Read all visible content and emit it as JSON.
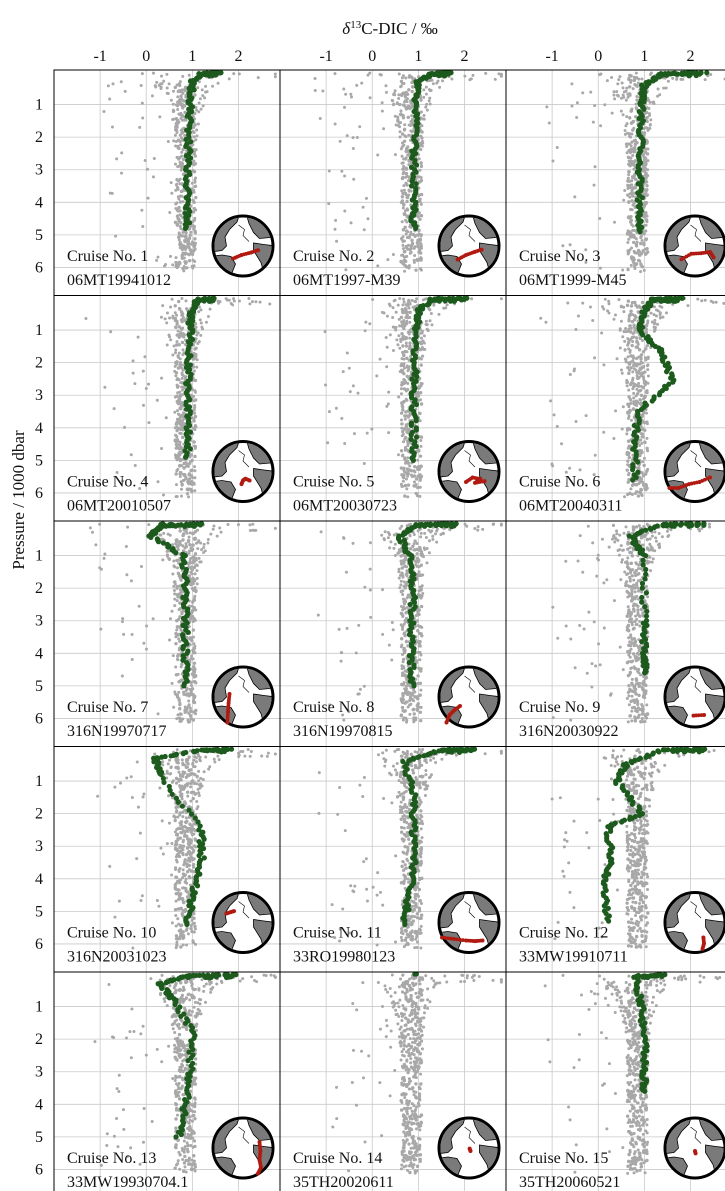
{
  "figure": {
    "x_axis_title": "δ13C-DIC / ‰",
    "x_axis_title_parts": {
      "delta": "δ",
      "superscript": "13",
      "rest": "C-DIC / ‰"
    },
    "y_axis_title": "Pressure / 1000 dbar"
  },
  "colors": {
    "background_points": "#a8a8a8",
    "cruise_points": "#1d5a1d",
    "track": "#b01a10",
    "land": "#7a7a7a",
    "ocean": "#ffffff",
    "grid": "#c9c9c9"
  },
  "icons": {
    "inset_map": "globe-atlantic-map-icon"
  },
  "chart_data": {
    "type": "scatter",
    "layout": "5x3 small multiples",
    "x_ticks": [
      -1,
      0,
      1,
      2
    ],
    "x_tick_labels": [
      "-1",
      "0",
      "1",
      "2"
    ],
    "xlim": [
      -2.0,
      2.9
    ],
    "y_ticks": [
      1,
      2,
      3,
      4,
      5,
      6
    ],
    "y_tick_labels": [
      "1",
      "2",
      "3",
      "4",
      "5",
      "6"
    ],
    "ylim": [
      0.0,
      6.8
    ],
    "y_inverted": true,
    "grid": true,
    "panels": [
      {
        "label": "Cruise No. 1",
        "expocode": "06MT19941012",
        "track": [
          [
            -0.33,
            0.42
          ],
          [
            -0.05,
            0.3
          ],
          [
            0.26,
            0.22
          ],
          [
            0.5,
            0.14
          ]
        ],
        "cruise_points": [
          [
            1.6,
            0.02
          ],
          [
            1.2,
            0.05
          ],
          [
            1.0,
            0.3
          ],
          [
            0.95,
            1.0
          ],
          [
            0.92,
            2.0
          ],
          [
            0.9,
            3.0
          ],
          [
            0.88,
            4.0
          ],
          [
            0.9,
            4.8
          ]
        ]
      },
      {
        "label": "Cruise No. 2",
        "expocode": "06MT1997-M39",
        "track": [
          [
            -0.38,
            0.45
          ],
          [
            -0.1,
            0.3
          ],
          [
            0.18,
            0.2
          ],
          [
            0.42,
            0.12
          ]
        ],
        "cruise_points": [
          [
            1.7,
            0.02
          ],
          [
            1.3,
            0.05
          ],
          [
            1.0,
            0.3
          ],
          [
            0.95,
            1.0
          ],
          [
            0.93,
            2.0
          ],
          [
            0.9,
            3.0
          ],
          [
            0.9,
            4.0
          ],
          [
            0.9,
            4.8
          ]
        ]
      },
      {
        "label": "Cruise No. 3",
        "expocode": "06MT1999-M45",
        "track": [
          [
            -0.45,
            0.44
          ],
          [
            -0.12,
            0.26
          ],
          [
            0.2,
            0.24
          ],
          [
            0.5,
            0.2
          ],
          [
            0.62,
            0.38
          ]
        ],
        "cruise_points": [
          [
            2.3,
            0.02
          ],
          [
            1.4,
            0.05
          ],
          [
            1.0,
            0.4
          ],
          [
            0.95,
            1.0
          ],
          [
            0.93,
            2.0
          ],
          [
            0.9,
            3.0
          ],
          [
            0.9,
            4.0
          ],
          [
            0.9,
            4.9
          ]
        ]
      },
      {
        "label": "Cruise No. 4",
        "expocode": "06MT20010507",
        "track": [
          [
            -0.05,
            0.42
          ],
          [
            0.0,
            0.3
          ],
          [
            0.08,
            0.24
          ],
          [
            0.22,
            0.3
          ]
        ],
        "cruise_points": [
          [
            1.5,
            0.02
          ],
          [
            1.1,
            0.1
          ],
          [
            0.95,
            0.5
          ],
          [
            0.95,
            1.0
          ],
          [
            0.93,
            2.0
          ],
          [
            0.9,
            3.0
          ],
          [
            0.9,
            4.0
          ],
          [
            0.9,
            4.9
          ]
        ]
      },
      {
        "label": "Cruise No. 5",
        "expocode": "06MT20030723",
        "track": [
          [
            -0.1,
            0.35
          ],
          [
            0.12,
            0.2
          ],
          [
            0.38,
            0.25
          ],
          [
            0.2,
            0.38
          ],
          [
            0.52,
            0.32
          ]
        ],
        "cruise_points": [
          [
            2.0,
            0.02
          ],
          [
            1.3,
            0.05
          ],
          [
            1.0,
            0.4
          ],
          [
            0.95,
            1.0
          ],
          [
            0.93,
            2.0
          ],
          [
            0.9,
            3.0
          ],
          [
            0.9,
            4.0
          ],
          [
            0.9,
            5.0
          ]
        ]
      },
      {
        "label": "Cruise No. 6",
        "expocode": "06MT20040311",
        "track": [
          [
            -0.85,
            0.55
          ],
          [
            -0.55,
            0.55
          ],
          [
            -0.2,
            0.42
          ],
          [
            0.15,
            0.35
          ],
          [
            0.5,
            0.2
          ]
        ],
        "cruise_points": [
          [
            1.8,
            0.02
          ],
          [
            1.2,
            0.05
          ],
          [
            1.0,
            0.4
          ],
          [
            0.9,
            1.0
          ],
          [
            1.4,
            1.7
          ],
          [
            1.6,
            2.6
          ],
          [
            0.85,
            3.5
          ],
          [
            0.8,
            4.5
          ],
          [
            0.8,
            5.6
          ]
        ]
      },
      {
        "label": "Cruise No. 7",
        "expocode": "316N19970717",
        "track": [
          [
            -0.45,
            -0.1
          ],
          [
            -0.48,
            0.2
          ],
          [
            -0.5,
            0.5
          ],
          [
            -0.52,
            0.85
          ]
        ],
        "cruise_points": [
          [
            1.2,
            0.02
          ],
          [
            0.3,
            0.1
          ],
          [
            0.1,
            0.4
          ],
          [
            0.8,
            1.0
          ],
          [
            0.85,
            2.0
          ],
          [
            0.85,
            3.0
          ],
          [
            0.85,
            4.0
          ],
          [
            0.85,
            5.0
          ]
        ]
      },
      {
        "label": "Cruise No. 8",
        "expocode": "316N19970815",
        "track": [
          [
            -0.3,
            0.3
          ],
          [
            -0.5,
            0.45
          ],
          [
            -0.65,
            0.6
          ],
          [
            -0.75,
            0.85
          ]
        ],
        "cruise_points": [
          [
            1.8,
            0.02
          ],
          [
            1.0,
            0.05
          ],
          [
            0.6,
            0.4
          ],
          [
            0.8,
            1.0
          ],
          [
            0.9,
            2.0
          ],
          [
            0.85,
            3.0
          ],
          [
            0.85,
            4.0
          ],
          [
            0.85,
            5.0
          ]
        ]
      },
      {
        "label": "Cruise No. 9",
        "expocode": "316N20030922",
        "track": [
          [
            -0.05,
            0.62
          ],
          [
            0.3,
            0.6
          ]
        ],
        "cruise_points": [
          [
            2.3,
            0.02
          ],
          [
            1.4,
            0.04
          ],
          [
            0.7,
            0.4
          ],
          [
            1.0,
            1.0
          ],
          [
            1.0,
            3.0
          ],
          [
            1.0,
            4.0
          ],
          [
            1.0,
            4.6
          ]
        ]
      },
      {
        "label": "Cruise No. 10",
        "expocode": "316N20031023",
        "track": [
          [
            -0.55,
            -0.3
          ],
          [
            -0.4,
            -0.35
          ],
          [
            -0.3,
            -0.38
          ]
        ],
        "cruise_points": [
          [
            1.8,
            0.02
          ],
          [
            1.2,
            0.05
          ],
          [
            0.2,
            0.3
          ],
          [
            0.3,
            0.8
          ],
          [
            1.2,
            2.5
          ],
          [
            1.2,
            3.5
          ],
          [
            1.0,
            4.5
          ],
          [
            0.9,
            5.4
          ]
        ]
      },
      {
        "label": "Cruise No. 11",
        "expocode": "33RO19980123",
        "track": [
          [
            -0.9,
            0.5
          ],
          [
            -0.5,
            0.55
          ],
          [
            -0.1,
            0.6
          ],
          [
            0.2,
            0.62
          ],
          [
            0.45,
            0.6
          ]
        ],
        "cruise_points": [
          [
            2.2,
            0.02
          ],
          [
            1.5,
            0.05
          ],
          [
            0.7,
            0.4
          ],
          [
            0.9,
            1.5
          ],
          [
            0.9,
            2.5
          ],
          [
            0.9,
            3.5
          ],
          [
            0.8,
            4.5
          ],
          [
            0.7,
            5.4
          ]
        ]
      },
      {
        "label": "Cruise No. 12",
        "expocode": "33MW19910711",
        "track": [
          [
            0.28,
            0.5
          ],
          [
            0.3,
            0.7
          ],
          [
            0.25,
            0.88
          ]
        ],
        "cruise_points": [
          [
            2.3,
            0.02
          ],
          [
            1.4,
            0.04
          ],
          [
            0.6,
            0.5
          ],
          [
            0.4,
            1.0
          ],
          [
            0.95,
            2.0
          ],
          [
            0.2,
            2.4
          ],
          [
            0.3,
            3.4
          ],
          [
            0.1,
            4.2
          ],
          [
            0.2,
            5.3
          ]
        ]
      },
      {
        "label": "Cruise No. 13",
        "expocode": "33MW19930704.1",
        "track": [
          [
            0.55,
            -0.2
          ],
          [
            0.58,
            0.1
          ],
          [
            0.55,
            0.4
          ],
          [
            0.6,
            0.65
          ],
          [
            0.5,
            0.85
          ]
        ],
        "cruise_points": [
          [
            1.9,
            0.02
          ],
          [
            0.9,
            0.05
          ],
          [
            0.3,
            0.3
          ],
          [
            0.6,
            0.8
          ],
          [
            1.0,
            1.8
          ],
          [
            0.95,
            3.0
          ],
          [
            0.85,
            4.0
          ],
          [
            0.7,
            5.0
          ]
        ]
      },
      {
        "label": "Cruise No. 14",
        "expocode": "35TH20020611",
        "track": [
          [
            0.02,
            0.02
          ],
          [
            0.05,
            0.1
          ]
        ],
        "cruise_points": [
          [
            0.9,
            0.0
          ]
        ]
      },
      {
        "label": "Cruise No. 15",
        "expocode": "35TH20060521",
        "track": [
          [
            0.0,
            0.1
          ],
          [
            0.02,
            0.18
          ]
        ],
        "cruise_points": [
          [
            1.4,
            0.02
          ],
          [
            0.8,
            0.1
          ],
          [
            0.95,
            1.0
          ],
          [
            1.0,
            2.0
          ],
          [
            1.0,
            3.0
          ],
          [
            1.0,
            3.6
          ]
        ]
      }
    ]
  }
}
